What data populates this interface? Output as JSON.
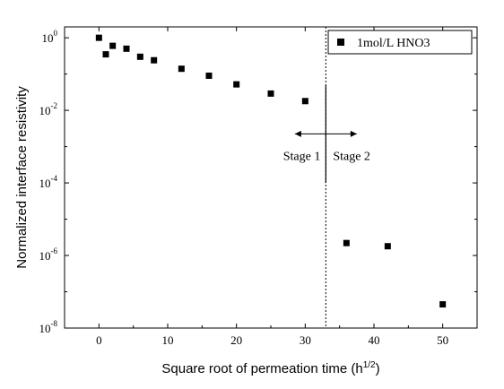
{
  "chart_data": {
    "type": "scatter",
    "xlabel": "Square root of permeation time (h",
    "xlabel_sup": "1/2",
    "xlabel_close": ")",
    "ylabel": "Normalized interface resistivity",
    "xlim": [
      -5,
      55
    ],
    "ylim_exp": [
      -8,
      0.3
    ],
    "y_scale": "log",
    "x_ticks": [
      0,
      10,
      20,
      30,
      40,
      50
    ],
    "y_tick_exps": [
      0,
      -2,
      -4,
      -6,
      -8
    ],
    "y_tick_base": "10",
    "legend": {
      "position": "top-right",
      "marker": "square"
    },
    "series": [
      {
        "name": "1mol/L HNO3",
        "color": "#000000",
        "points": [
          {
            "x": 0,
            "y": 1.0
          },
          {
            "x": 1,
            "y": 0.35
          },
          {
            "x": 2,
            "y": 0.6
          },
          {
            "x": 4,
            "y": 0.5
          },
          {
            "x": 6,
            "y": 0.3
          },
          {
            "x": 8,
            "y": 0.24
          },
          {
            "x": 12,
            "y": 0.14
          },
          {
            "x": 16,
            "y": 0.09
          },
          {
            "x": 20,
            "y": 0.052
          },
          {
            "x": 25,
            "y": 0.029
          },
          {
            "x": 30,
            "y": 0.018
          },
          {
            "x": 36,
            "y": 2.2e-06
          },
          {
            "x": 42,
            "y": 1.8e-06
          },
          {
            "x": 50,
            "y": 4.5e-08
          }
        ]
      }
    ],
    "annotations": {
      "divider_x": 33,
      "stage1": "Stage 1",
      "stage2": "Stage 2"
    }
  }
}
